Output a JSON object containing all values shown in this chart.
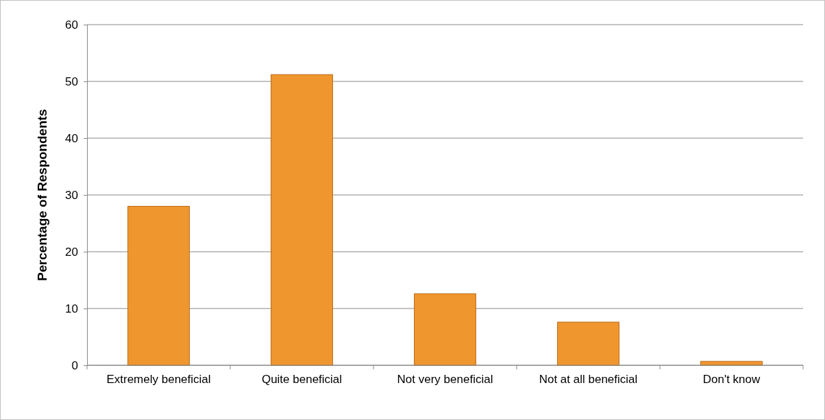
{
  "chart_data": {
    "type": "bar",
    "ylabel": "Percentage of Respondents",
    "categories": [
      "Extremely beneficial",
      "Quite beneficial",
      "Not very beneficial",
      "Not at all beneficial",
      "Don't know"
    ],
    "values": [
      28,
      51.2,
      12.6,
      7.6,
      0.7
    ],
    "color": "#f0962e",
    "ylim": [
      0,
      60
    ],
    "yticks": [
      0,
      10,
      20,
      30,
      40,
      50,
      60
    ],
    "grid": "y"
  }
}
